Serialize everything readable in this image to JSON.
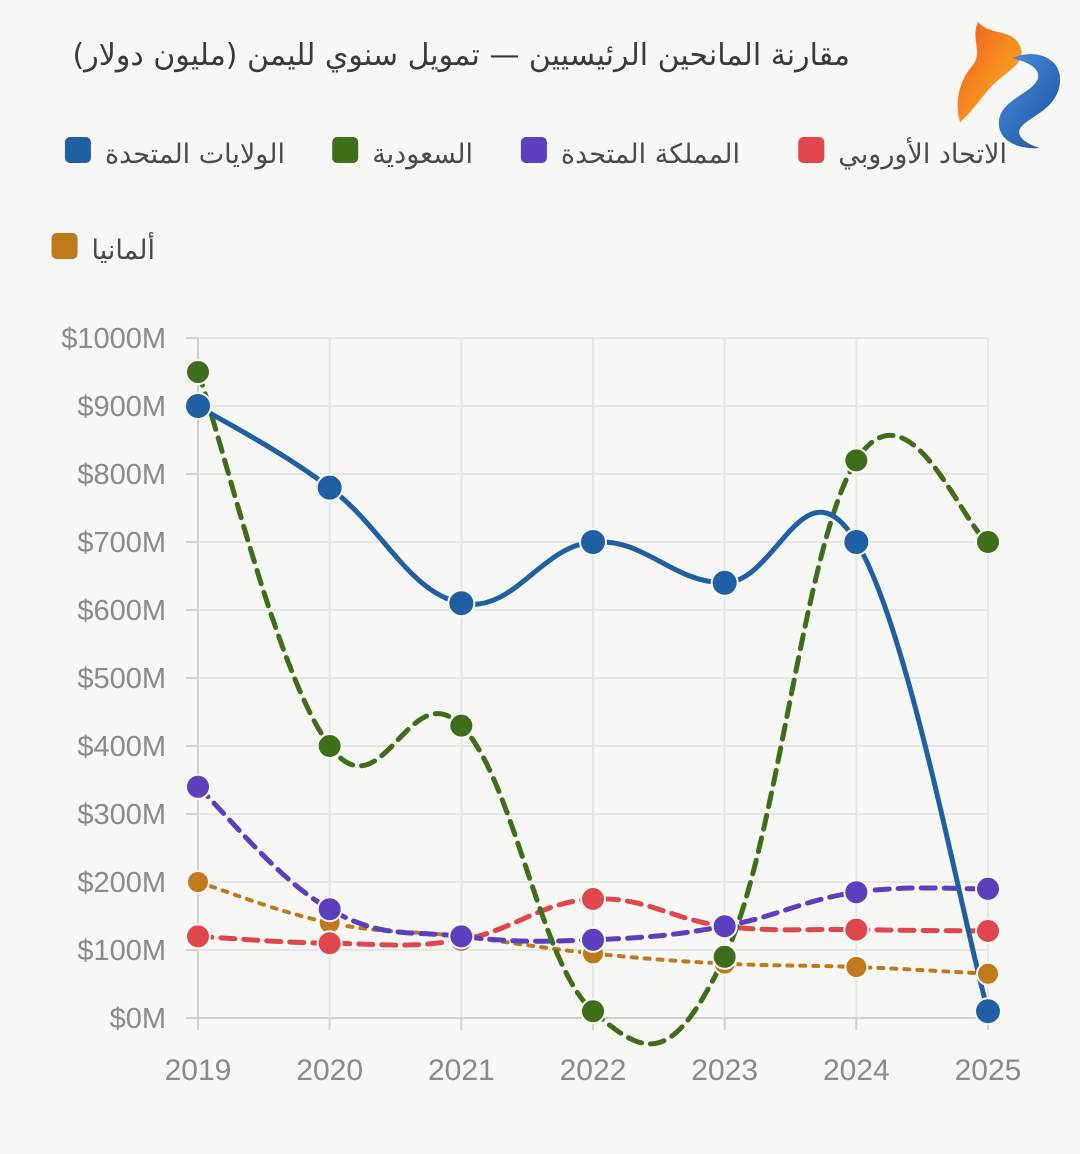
{
  "chart_data": {
    "type": "line",
    "title": "مقارنة المانحين الرئيسيين — تمويل سنوي لليمن (مليون دولار)",
    "xlabel": "",
    "ylabel": "",
    "categories": [
      "2019",
      "2020",
      "2021",
      "2022",
      "2023",
      "2024",
      "2025"
    ],
    "ylim": [
      0,
      1000
    ],
    "yticks": [
      0,
      100,
      200,
      300,
      400,
      500,
      600,
      700,
      800,
      900,
      1000
    ],
    "ytick_prefix": "$",
    "ytick_suffix": "M",
    "grid": true,
    "legend_position": "top",
    "series": [
      {
        "name": "الولايات المتحدة",
        "color": "#1f5fa3",
        "line_style": "solid",
        "values": [
          900,
          780,
          610,
          700,
          640,
          700,
          10
        ]
      },
      {
        "name": "السعودية",
        "color": "#3f6e1b",
        "line_style": "dashed",
        "values": [
          950,
          400,
          430,
          10,
          90,
          820,
          700
        ]
      },
      {
        "name": "المملكة المتحدة",
        "color": "#5b3fbf",
        "line_style": "dashed",
        "values": [
          340,
          160,
          120,
          115,
          135,
          185,
          190
        ]
      },
      {
        "name": "الاتحاد الأوروبي",
        "color": "#e0474c",
        "line_style": "dashed",
        "values": [
          120,
          110,
          115,
          175,
          135,
          130,
          128
        ]
      },
      {
        "name": "ألمانيا",
        "color": "#c07a1a",
        "line_style": "dotted",
        "values": [
          200,
          140,
          120,
          95,
          80,
          75,
          65
        ]
      }
    ]
  }
}
